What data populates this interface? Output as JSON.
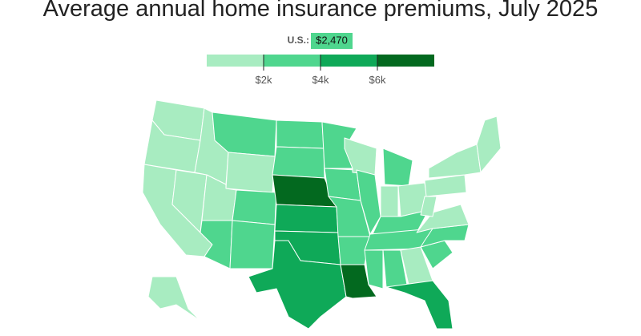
{
  "chart_data": {
    "type": "choropleth",
    "title": "Average annual home insurance premiums, July 2025",
    "us_average": {
      "label": "U.S.:",
      "value": 2470,
      "value_label": "$2,470"
    },
    "legend": {
      "bins": [
        0,
        2000,
        4000,
        6000,
        8000
      ],
      "colors": [
        "#a8ecc1",
        "#4fd68e",
        "#0fa958",
        "#03691f"
      ],
      "xlim": [
        0,
        8000
      ],
      "xticks": [
        {
          "value": 2000,
          "label": "$2k"
        },
        {
          "value": 4000,
          "label": "$4k"
        },
        {
          "value": 6000,
          "label": "$6k"
        }
      ]
    }
  }
}
